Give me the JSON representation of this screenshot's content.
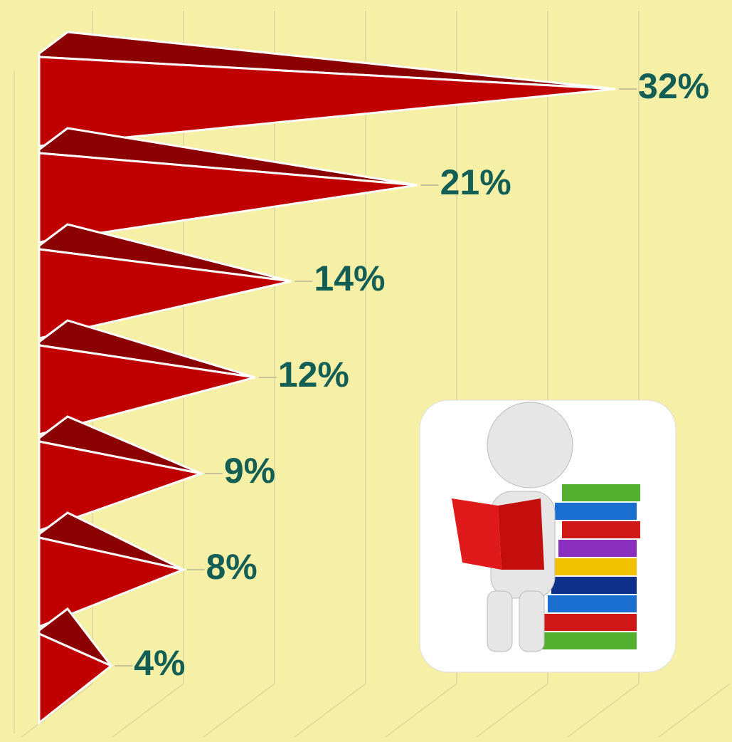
{
  "chart_data": {
    "type": "bar",
    "orientation": "horizontal",
    "shape": "cone",
    "categories": [
      null,
      null,
      null,
      null,
      null,
      null,
      null
    ],
    "values": [
      32,
      21,
      14,
      12,
      9,
      8,
      4
    ],
    "value_labels": [
      "32%",
      "21%",
      "14%",
      "12%",
      "9%",
      "8%",
      "4%"
    ],
    "color": "#c00000",
    "xlim": [
      0,
      35
    ]
  }
}
